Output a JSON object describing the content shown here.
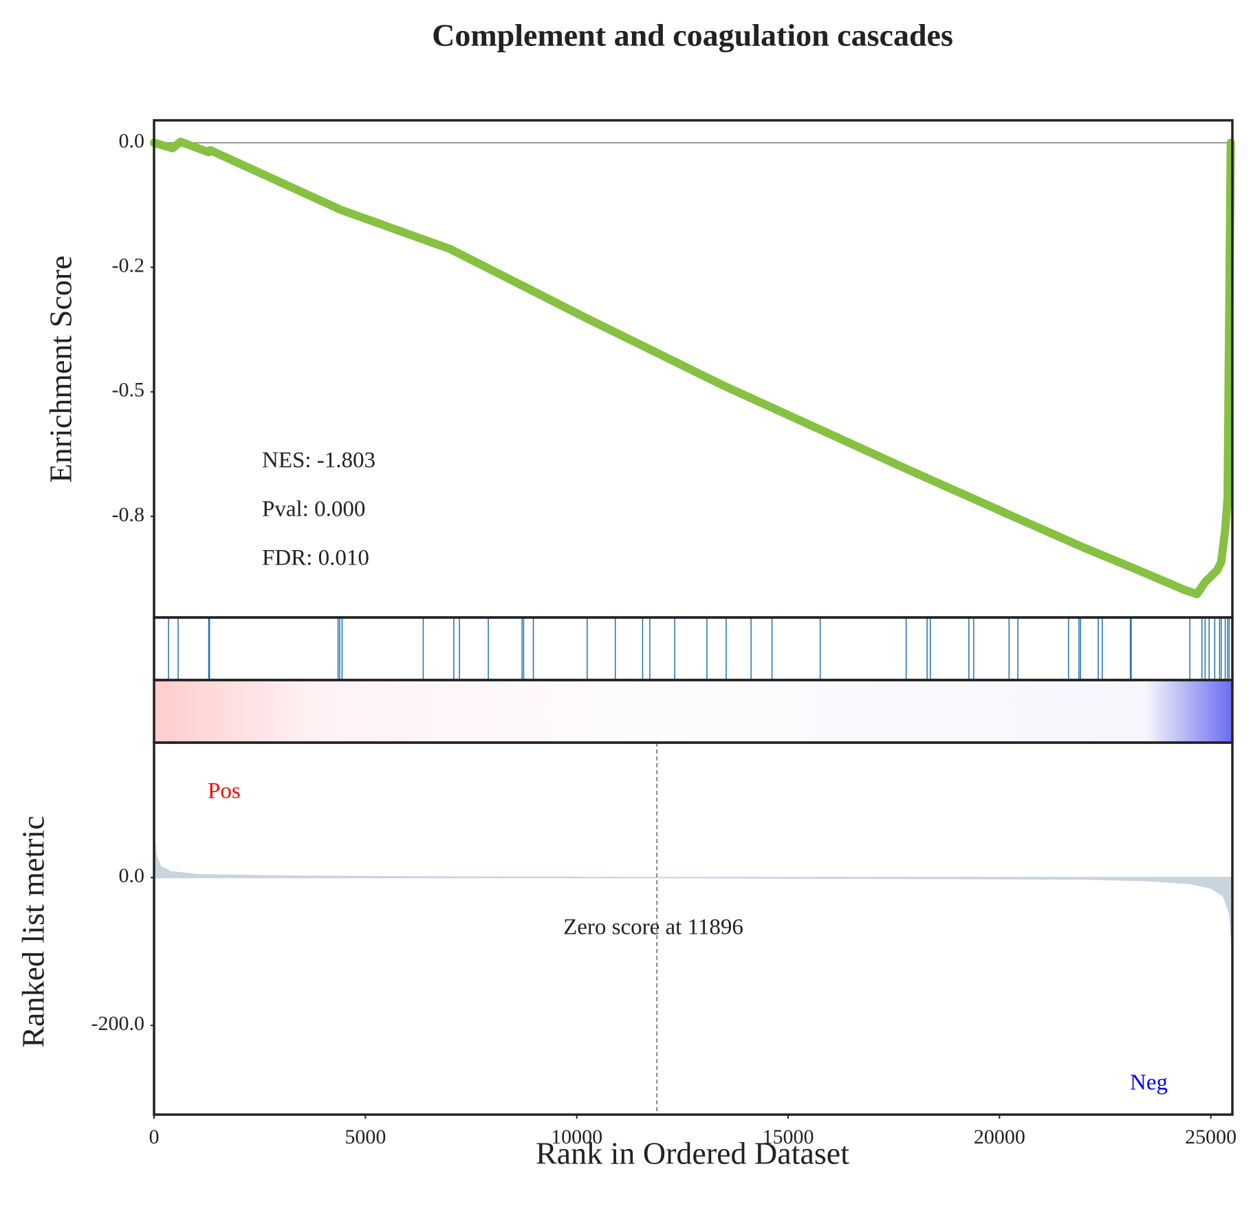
{
  "chart_data": {
    "type": "gsea",
    "title": "Complement and coagulation cascades",
    "xlabel": "Rank in Ordered Dataset",
    "xlim": [
      0,
      25510
    ],
    "xticks": [
      0,
      5000,
      10000,
      15000,
      20000,
      25000
    ],
    "es": {
      "ylabel": "Enrichment Score",
      "color": "#86c142",
      "ylim": [
        -0.953,
        0.045
      ],
      "yticks": [
        {
          "value": 0,
          "label": "0.0"
        },
        {
          "value": -0.25,
          "label": "-0.2"
        },
        {
          "value": -0.5,
          "label": "-0.5"
        },
        {
          "value": -0.75,
          "label": "-0.8"
        }
      ],
      "x": [
        0,
        437,
        627,
        1293,
        1331,
        4429,
        6996,
        10227,
        13459,
        17831,
        20398,
        21918,
        23059,
        24389,
        24674,
        24864,
        25150,
        25245,
        25340,
        25397,
        25434,
        25472
      ],
      "values": [
        0,
        -0.011,
        0.002,
        -0.019,
        -0.015,
        -0.135,
        -0.213,
        -0.352,
        -0.487,
        -0.656,
        -0.753,
        -0.81,
        -0.85,
        -0.898,
        -0.906,
        -0.882,
        -0.858,
        -0.842,
        -0.777,
        -0.713,
        -0.358,
        0.0
      ]
    },
    "annotations": [
      "NES: -1.803",
      "Pval: 0.000",
      "FDR: 0.010"
    ],
    "hits_color": "#1f6fb4",
    "hits": [
      342,
      570,
      1293,
      1312,
      4353,
      4391,
      4448,
      6368,
      7091,
      7224,
      7908,
      8706,
      8744,
      8973,
      10246,
      10912,
      11558,
      11729,
      12318,
      13079,
      13535,
      14124,
      14619,
      15759,
      17793,
      18288,
      18364,
      19276,
      19390,
      20227,
      20436,
      21633,
      21880,
      21918,
      22337,
      22432,
      23097,
      23116,
      24504,
      24789,
      24865,
      24960,
      25093,
      25207,
      25245,
      25340,
      25397,
      25435
    ],
    "metric": {
      "ylabel": "Ranked list metric",
      "color": "#c9d4dd",
      "ylim": [
        -320.7,
        182.6
      ],
      "yticks": [
        {
          "value": 0,
          "label": "0.0"
        },
        {
          "value": -200,
          "label": "-200.0"
        }
      ],
      "x": [
        0,
        50,
        150,
        400,
        1000,
        3000,
        6000,
        11896,
        18000,
        22000,
        23500,
        24500,
        25000,
        25300,
        25450,
        25510
      ],
      "values": [
        58,
        30,
        15,
        8,
        4,
        2,
        1,
        0,
        -1,
        -2,
        -4,
        -8,
        -14,
        -25,
        -50,
        -95
      ]
    },
    "pos_label": "Pos",
    "pos_color": "red",
    "neg_label": "Neg",
    "neg_color": "blue",
    "zero_score": 11896,
    "zero_label": "Zero score at 11896"
  }
}
